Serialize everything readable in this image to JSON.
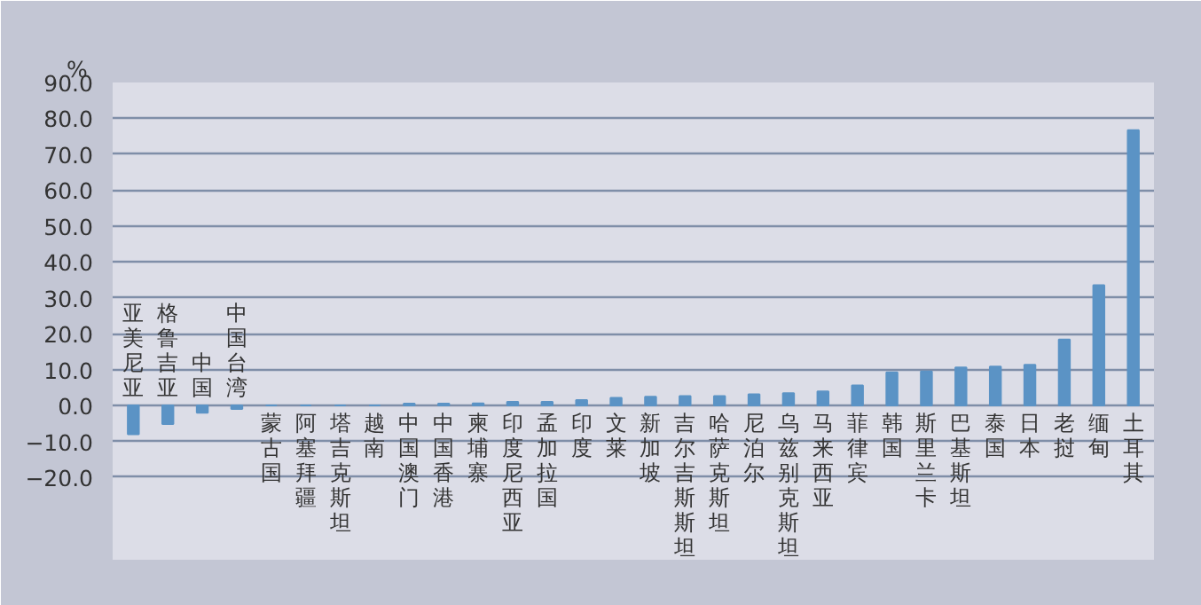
{
  "chart_data": {
    "type": "bar",
    "ylabel": "%",
    "categories": [
      "亚美尼亚",
      "格鲁吉亚",
      "中国",
      "中国台湾",
      "蒙古国",
      "阿塞拜疆",
      "塔吉克斯坦",
      "越南",
      "中国澳门",
      "中国香港",
      "柬埔寨",
      "印度尼西亚",
      "孟加拉国",
      "印度",
      "文莱",
      "新加坡",
      "吉尔吉斯斯坦",
      "哈萨克斯坦",
      "尼泊尔",
      "乌兹别克斯坦",
      "马来西亚",
      "菲律宾",
      "韩国",
      "斯里兰卡",
      "巴基斯坦",
      "泰国",
      "日本",
      "老挝",
      "缅甸",
      "土耳其"
    ],
    "values": [
      -8.0,
      -5.2,
      -2.0,
      -1.0,
      0,
      0,
      0,
      0,
      0.5,
      0.5,
      0.6,
      1.0,
      1.0,
      1.5,
      2.1,
      2.4,
      2.6,
      2.6,
      3.1,
      3.4,
      3.9,
      5.6,
      9.2,
      9.5,
      10.6,
      10.8,
      11.3,
      18.4,
      33.5,
      76.7
    ],
    "color": "#5b93c5",
    "ylim": [
      -43,
      90
    ],
    "yticks": [
      {
        "value": -20,
        "label": "−20.0"
      },
      {
        "value": -10,
        "label": "−10.0"
      },
      {
        "value": 0,
        "label": "0.0"
      },
      {
        "value": 10,
        "label": "10.0"
      },
      {
        "value": 20,
        "label": "20.0"
      },
      {
        "value": 30,
        "label": "30.0"
      },
      {
        "value": 40,
        "label": "40.0"
      },
      {
        "value": 50,
        "label": "50.0"
      },
      {
        "value": 60,
        "label": "60.0"
      },
      {
        "value": 70,
        "label": "70.0"
      },
      {
        "value": 80,
        "label": "80.0"
      },
      {
        "value": 90,
        "label": "90.0"
      }
    ],
    "grid": "y"
  }
}
